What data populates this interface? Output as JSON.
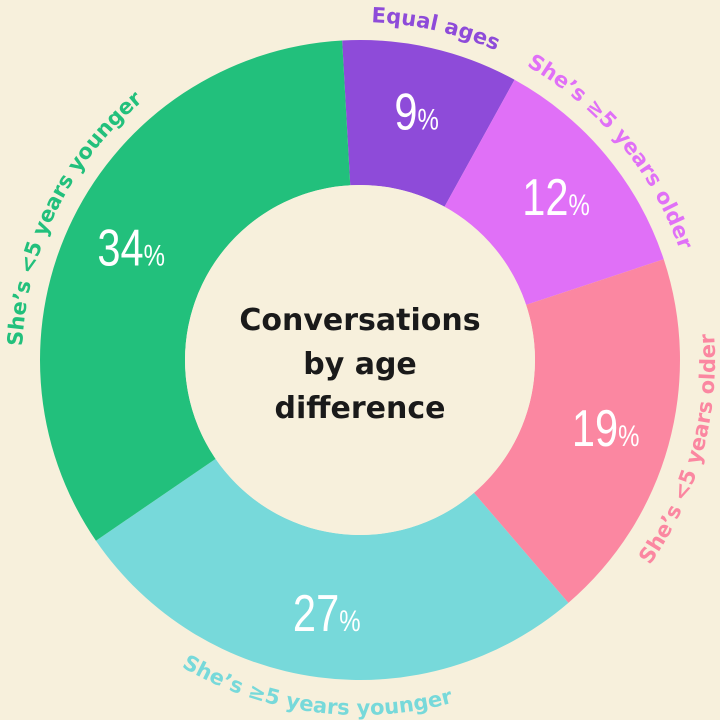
{
  "chart_data": {
    "type": "pie",
    "donut": true,
    "title_lines": [
      "Conversations",
      "by age",
      "difference"
    ],
    "categories": [
      "Equal ages",
      "She’s ≥5 years older",
      "She’s <5 years older",
      "She’s ≥5 years younger",
      "She’s <5 years younger"
    ],
    "values": [
      9,
      12,
      19,
      27,
      34
    ],
    "value_suffix": "%",
    "colors": [
      "#8e4bd9",
      "#e070f7",
      "#fb87a1",
      "#77d9da",
      "#22c07c"
    ],
    "label_colors": [
      "#8e4bd9",
      "#e070f7",
      "#fb87a1",
      "#77d9da",
      "#22c07c"
    ],
    "value_label_color": "#ffffff",
    "background": "#f7f0dc"
  }
}
